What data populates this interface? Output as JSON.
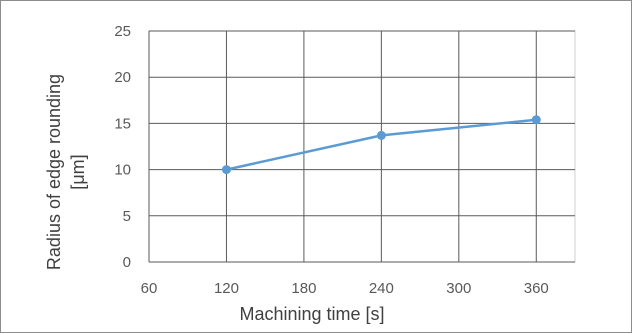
{
  "chart_data": {
    "type": "line",
    "title": "",
    "xlabel": "Machining time [s]",
    "ylabel_lines": [
      "Radius of edge rounding",
      "[μm]"
    ],
    "x_ticks": [
      60,
      120,
      180,
      240,
      300,
      360
    ],
    "y_ticks": [
      0,
      5,
      10,
      15,
      20,
      25
    ],
    "xlim": [
      60,
      390
    ],
    "ylim": [
      0,
      25
    ],
    "grid": true,
    "legend": "none",
    "series": [
      {
        "color": "#5b9bd5",
        "points": [
          {
            "x": 120,
            "y": 10.0
          },
          {
            "x": 240,
            "y": 13.7
          },
          {
            "x": 360,
            "y": 15.4
          }
        ]
      }
    ]
  }
}
